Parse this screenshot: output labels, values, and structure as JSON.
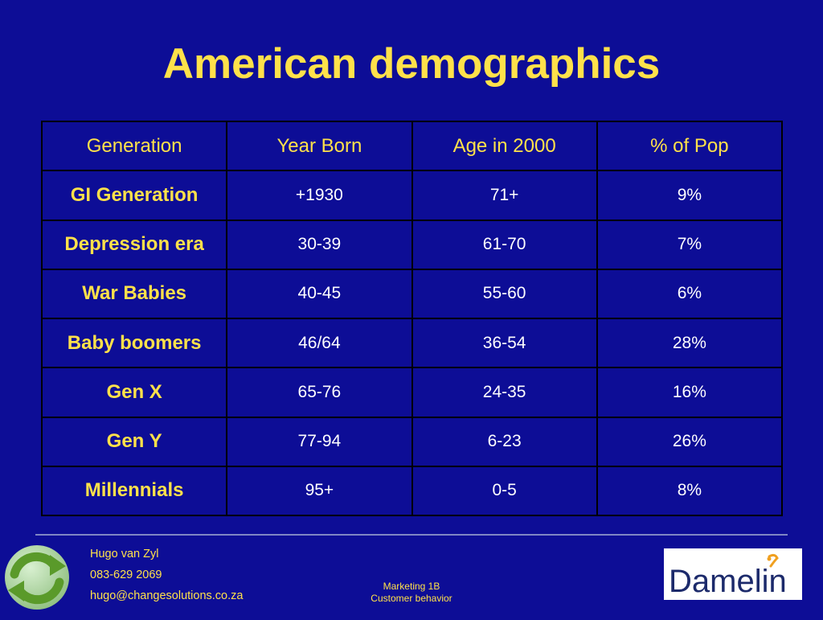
{
  "slide": {
    "title": "American demographics"
  },
  "table": {
    "headers": [
      "Generation",
      "Year Born",
      "Age in 2000",
      "% of Pop"
    ],
    "rows": [
      {
        "generation": "GI Generation",
        "year_born": "+1930",
        "age_2000": "71+",
        "pct_pop": "9%"
      },
      {
        "generation": "Depression era",
        "year_born": "30-39",
        "age_2000": "61-70",
        "pct_pop": "7%"
      },
      {
        "generation": "War Babies",
        "year_born": "40-45",
        "age_2000": "55-60",
        "pct_pop": "6%"
      },
      {
        "generation": "Baby boomers",
        "year_born": "46/64",
        "age_2000": "36-54",
        "pct_pop": "28%"
      },
      {
        "generation": "Gen X",
        "year_born": "65-76",
        "age_2000": "24-35",
        "pct_pop": "16%"
      },
      {
        "generation": "Gen Y",
        "year_born": "77-94",
        "age_2000": "6-23",
        "pct_pop": "26%"
      },
      {
        "generation": "Millennials",
        "year_born": "95+",
        "age_2000": "0-5",
        "pct_pop": "8%"
      }
    ]
  },
  "footer": {
    "contact_name": "Hugo van Zyl",
    "contact_phone": "083-629 2069",
    "contact_email": "hugo@changesolutions.co.za",
    "course": "Marketing 1B",
    "topic": "Customer behavior",
    "brand_logo_text": "Damelin",
    "left_logo_icon": "refresh-cycle-icon"
  },
  "colors": {
    "background": "#0d0d96",
    "accent_yellow": "#ffe14a",
    "value_text": "#ffffff",
    "grid_lines": "#000000",
    "brand_navy": "#1c2a6b",
    "brand_orange": "#f0a020"
  }
}
